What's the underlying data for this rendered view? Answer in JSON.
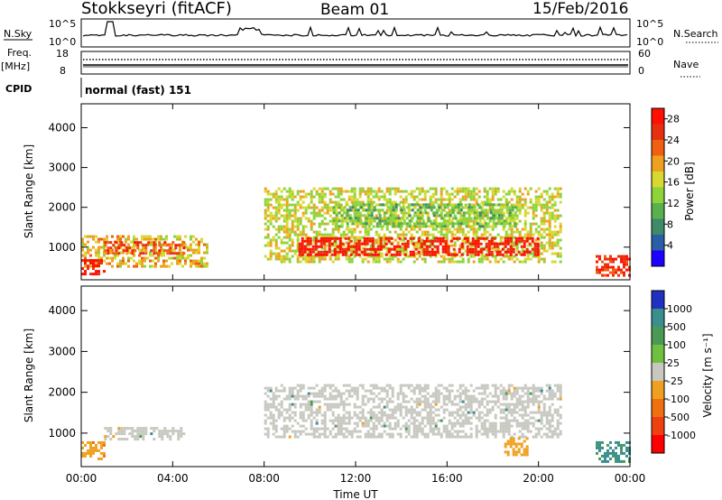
{
  "header": {
    "station": "Stokkseyri (fitACF)",
    "beam": "Beam 01",
    "date": "15/Feb/2016"
  },
  "sky_panel": {
    "left_label": "N.Sky",
    "right_label": "N.Search",
    "left_ticks": [
      "10^5",
      "10^0"
    ],
    "right_ticks": [
      "10^5",
      "10^0"
    ]
  },
  "freq_panel": {
    "left_label_line1": "Freq.",
    "left_label_line2": "[MHz]",
    "right_label": "Nave",
    "left_ticks": [
      "18",
      "8"
    ],
    "right_ticks": [
      "60",
      "0"
    ]
  },
  "cpid_panel": {
    "left_label": "CPID",
    "mode_text": "normal (fast) 151"
  },
  "colors": {
    "power": [
      "#1e00ff",
      "#2a5fa8",
      "#3f8a6a",
      "#5ab04a",
      "#8cd43a",
      "#d8d830",
      "#f0a020",
      "#f06010",
      "#e83010",
      "#ff1000"
    ],
    "velocity": [
      "#2030c0",
      "#3a8e8e",
      "#4a9a55",
      "#70c040",
      "#c8c8c0",
      "#f0a020",
      "#f07010",
      "#f04010",
      "#ff0000"
    ],
    "ground_scatter": "#c8c8c0"
  },
  "chart_data": [
    {
      "type": "heatmap",
      "title": "",
      "quantity": "Power",
      "xlabel": "",
      "ylabel": "Slant Range [km]",
      "x_ticks": [
        "00:00",
        "04:00",
        "08:00",
        "12:00",
        "16:00",
        "20:00",
        "00:00"
      ],
      "y_ticks": [
        "1000",
        "2000",
        "3000",
        "4000"
      ],
      "xlim_hours": [
        0,
        24
      ],
      "ylim_km": [
        180,
        4600
      ],
      "colorbar": {
        "label": "Power [dB]",
        "ticks": [
          "4",
          "8",
          "12",
          "16",
          "20",
          "24",
          "28"
        ],
        "range": [
          0,
          30
        ]
      },
      "regions": [
        {
          "t0": 0.0,
          "t1": 5.5,
          "r0": 500,
          "r1": 1300,
          "value": 18
        },
        {
          "t0": 1.0,
          "t1": 4.5,
          "r0": 850,
          "r1": 1150,
          "value": 24
        },
        {
          "t0": 0.0,
          "t1": 1.0,
          "r0": 300,
          "r1": 700,
          "value": 28
        },
        {
          "t0": 8.0,
          "t1": 21.0,
          "r0": 600,
          "r1": 2500,
          "value": 16
        },
        {
          "t0": 9.5,
          "t1": 20.0,
          "r0": 800,
          "r1": 1250,
          "value": 28
        },
        {
          "t0": 11.0,
          "t1": 19.0,
          "r0": 1500,
          "r1": 2100,
          "value": 12
        },
        {
          "t0": 22.5,
          "t1": 24.0,
          "r0": 300,
          "r1": 800,
          "value": 26
        }
      ]
    },
    {
      "type": "heatmap",
      "title": "",
      "quantity": "Velocity",
      "xlabel": "Time UT",
      "ylabel": "Slant Range [km]",
      "x_ticks": [
        "00:00",
        "04:00",
        "08:00",
        "12:00",
        "16:00",
        "20:00",
        "00:00"
      ],
      "y_ticks": [
        "1000",
        "2000",
        "3000",
        "4000"
      ],
      "xlim_hours": [
        0,
        24
      ],
      "ylim_km": [
        180,
        4600
      ],
      "colorbar": {
        "label": "Velocity [m s⁻¹]",
        "ticks": [
          "1000",
          "500",
          "100",
          "25",
          "-25",
          "-100",
          "-500",
          "-1000"
        ],
        "range": [
          -1000,
          1000
        ]
      },
      "regions": [
        {
          "t0": 0.0,
          "t1": 1.0,
          "r0": 400,
          "r1": 800,
          "value": -400
        },
        {
          "t0": 1.0,
          "t1": 4.5,
          "r0": 850,
          "r1": 1150,
          "value": 0
        },
        {
          "t0": 8.0,
          "t1": 21.0,
          "r0": 900,
          "r1": 2200,
          "value": 0
        },
        {
          "t0": 18.5,
          "t1": 19.5,
          "r0": 500,
          "r1": 900,
          "value": -300
        },
        {
          "t0": 22.5,
          "t1": 24.0,
          "r0": 300,
          "r1": 800,
          "value": 200
        }
      ]
    }
  ]
}
